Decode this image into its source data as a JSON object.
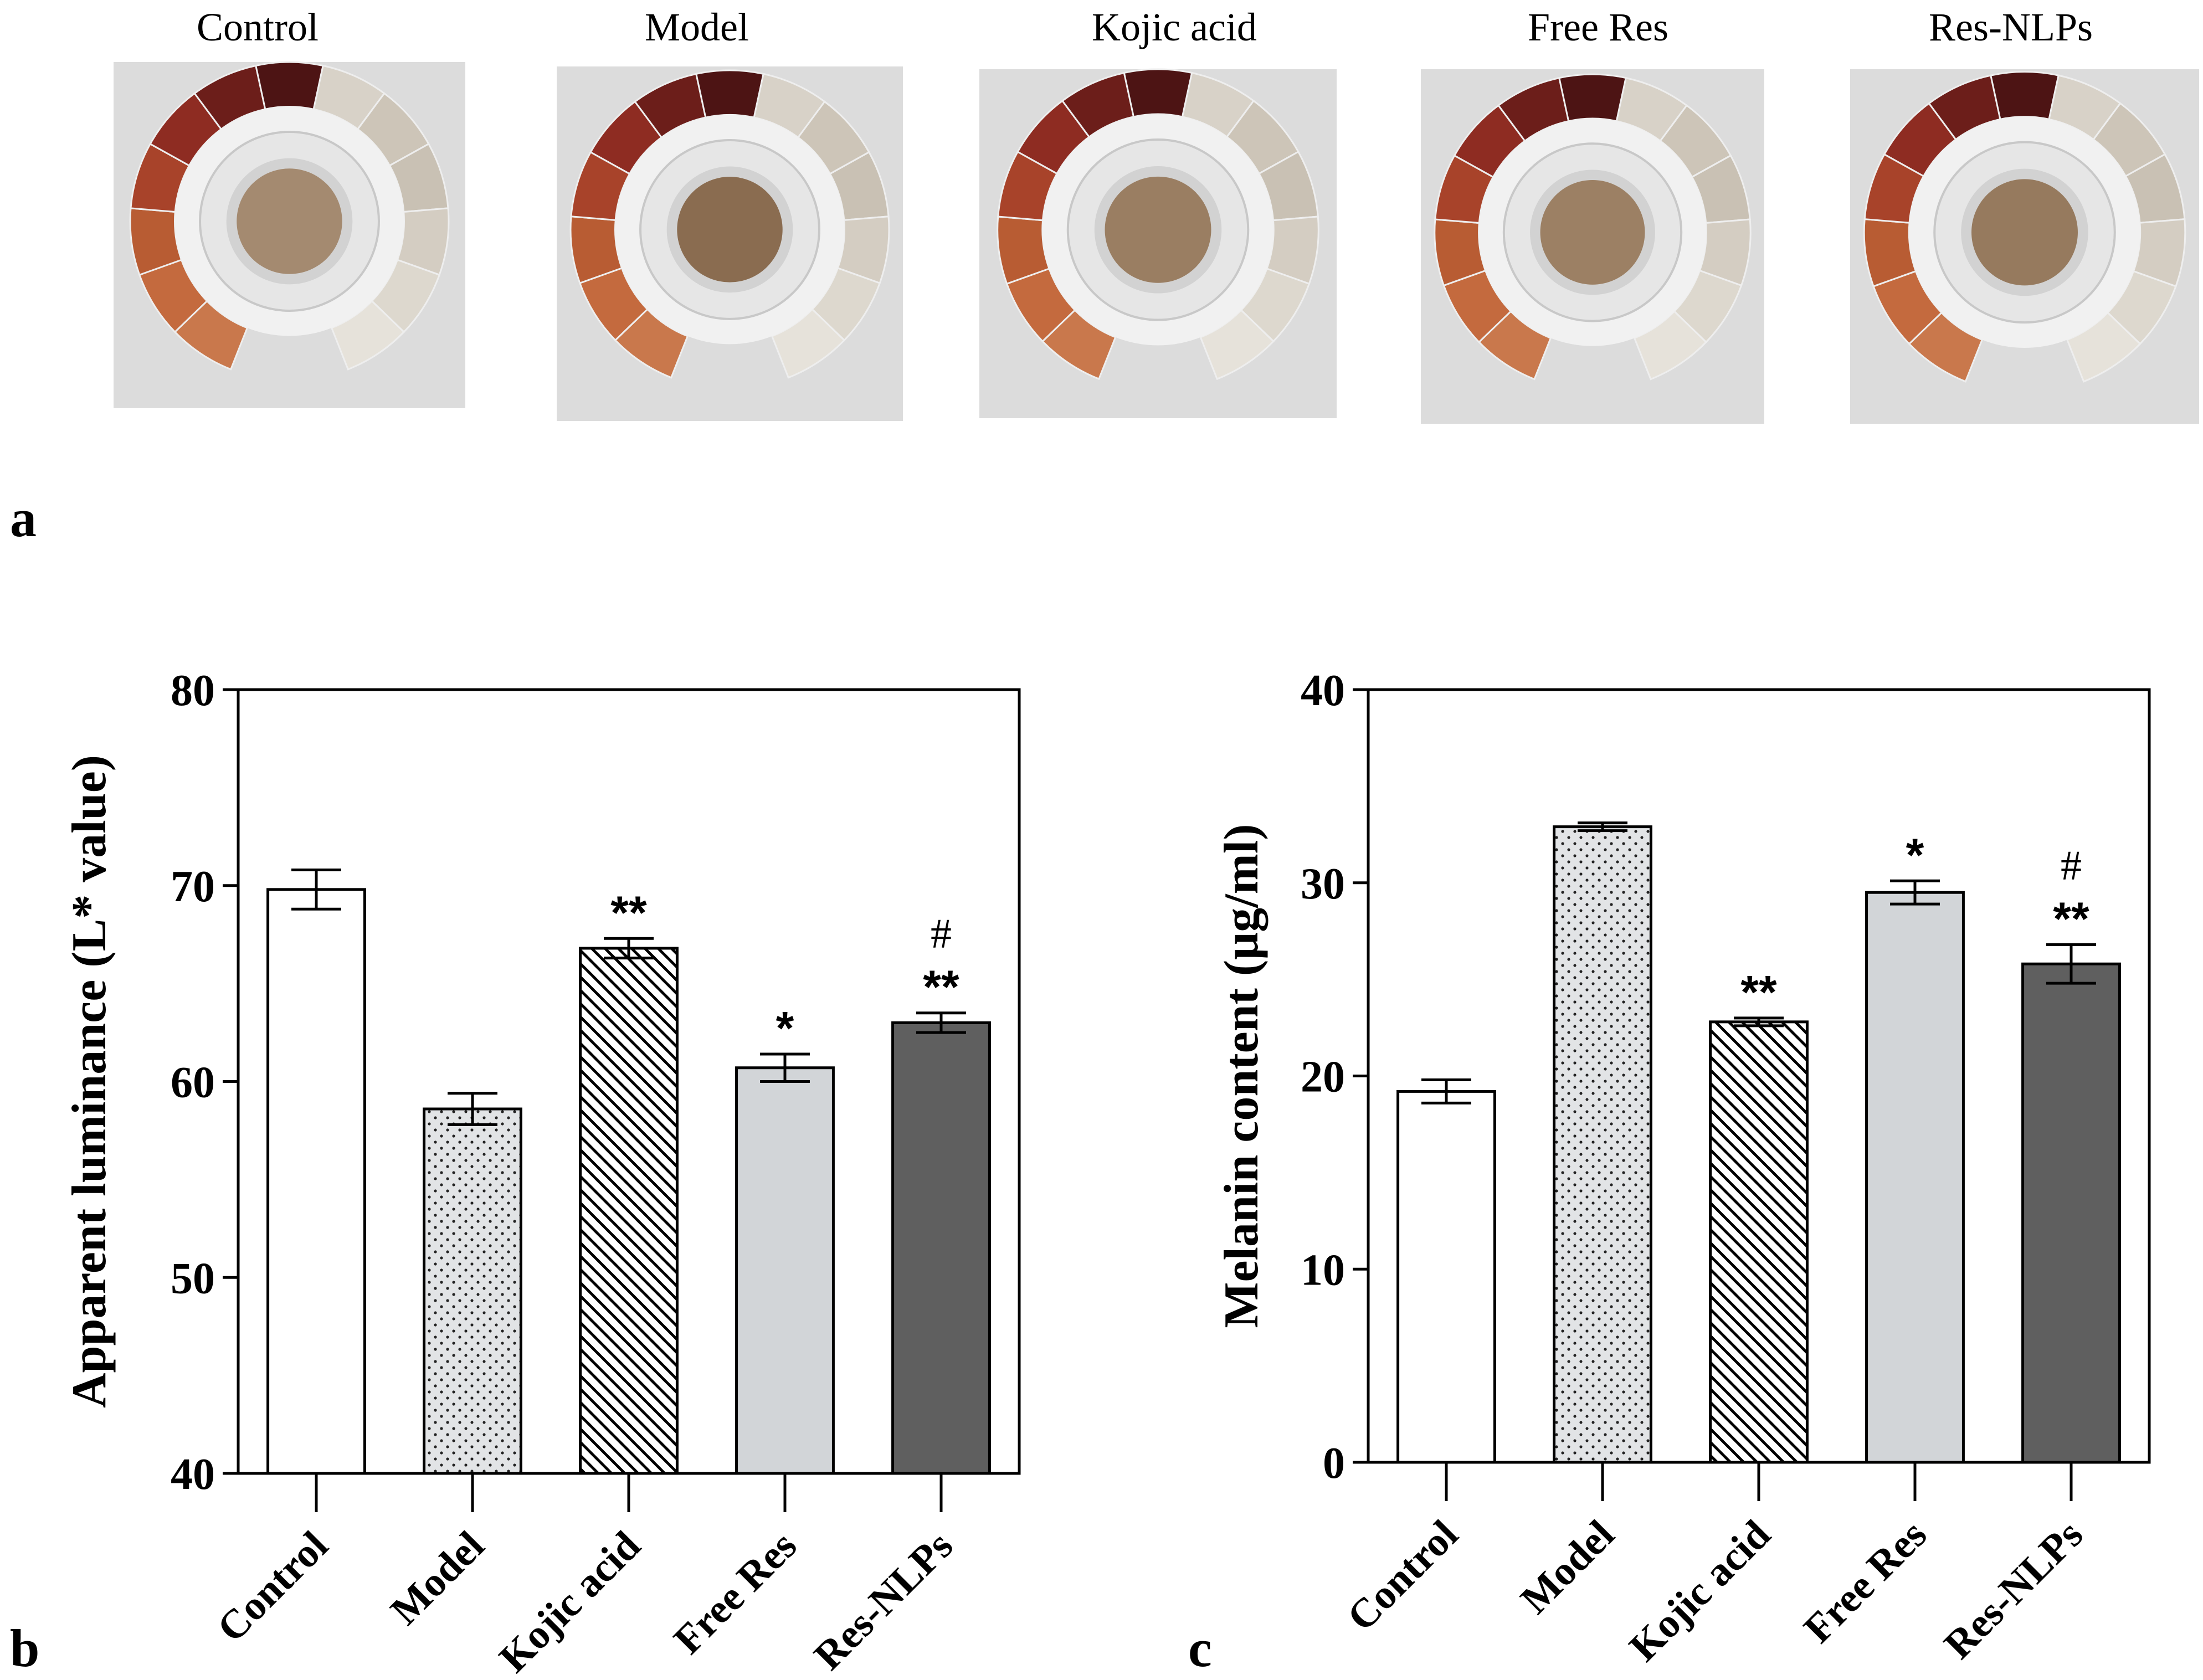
{
  "panel_labels": {
    "a": "a",
    "b": "b",
    "c": "c"
  },
  "photo_panel": {
    "titles": [
      "Control",
      "Model",
      "Kojic acid",
      "Free Res",
      "Res-NLPs"
    ],
    "sample_colors": [
      "#a48a70",
      "#8a6c50",
      "#9a7e62",
      "#9c8064",
      "#967a5e"
    ],
    "wheel_colors": [
      "#d8d2c8",
      "#cdc5b8",
      "#c9c1b4",
      "#d4cdc2",
      "#ddd8ce",
      "#e6e2da",
      "#c9784c",
      "#c46a3e",
      "#b85c33",
      "#a8432a",
      "#8e2c22",
      "#6c1e1a",
      "#4d1414"
    ]
  },
  "chart_data": [
    {
      "type": "bar",
      "title": "",
      "xlabel": "",
      "ylabel": "Apparent luminance (L* value)",
      "categories": [
        "Control",
        "Model",
        "Kojic acid",
        "Free Res",
        "Res-NLPs"
      ],
      "values": [
        69.8,
        58.6,
        66.8,
        60.7,
        63.0
      ],
      "errors": [
        1.0,
        0.8,
        0.5,
        0.7,
        0.5
      ],
      "significance": [
        "",
        "",
        "**",
        "*",
        "**"
      ],
      "hash_marks": [
        "",
        "",
        "",
        "",
        "#"
      ],
      "ylim": [
        40,
        80
      ],
      "yticks": [
        40,
        50,
        60,
        70,
        80
      ],
      "fill_patterns": [
        "white",
        "dots",
        "hatch",
        "lightgray",
        "darkgray"
      ]
    },
    {
      "type": "bar",
      "title": "",
      "xlabel": "",
      "ylabel": "Melanin content (μg/ml)",
      "categories": [
        "Control",
        "Model",
        "Kojic acid",
        "Free Res",
        "Res-NLPs"
      ],
      "values": [
        19.2,
        32.9,
        22.8,
        29.5,
        25.8
      ],
      "errors": [
        0.6,
        0.2,
        0.2,
        0.6,
        1.0
      ],
      "significance": [
        "",
        "",
        "**",
        "*",
        "**"
      ],
      "hash_marks": [
        "",
        "",
        "",
        "",
        "#"
      ],
      "ylim": [
        0,
        40
      ],
      "yticks": [
        0,
        10,
        20,
        30,
        40
      ],
      "fill_patterns": [
        "white",
        "dots",
        "hatch",
        "lightgray",
        "darkgray"
      ]
    }
  ]
}
